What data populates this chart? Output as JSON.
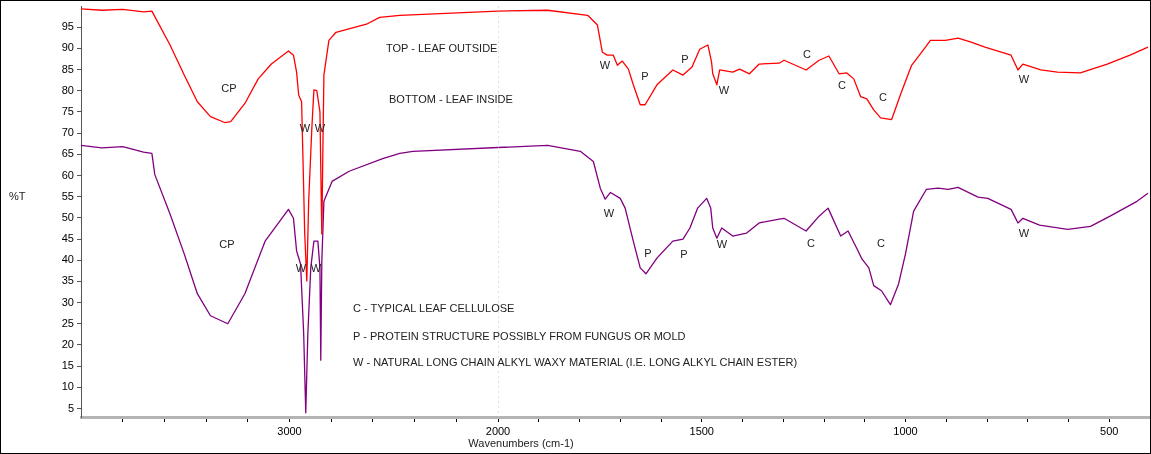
{
  "chart_data": [
    {
      "type": "line",
      "ylabel": "%T",
      "marker": "none",
      "xlim": [
        4000,
        2000
      ],
      "ylim": [
        3,
        100
      ],
      "xticks": [
        {
          "value": 3800,
          "label": null
        },
        {
          "value": 3600,
          "label": null
        },
        {
          "value": 3400,
          "label": null
        },
        {
          "value": 3200,
          "label": null
        },
        3000,
        {
          "value": 2800,
          "label": null
        },
        {
          "value": 2600,
          "label": null
        },
        {
          "value": 2400,
          "label": null
        },
        {
          "value": 2200,
          "label": null
        },
        2000
      ],
      "yticks": [
        5,
        10,
        15,
        20,
        25,
        30,
        35,
        40,
        45,
        50,
        55,
        60,
        65,
        70,
        75,
        80,
        85,
        90,
        95
      ],
      "series": [
        {
          "color": "#ff0000",
          "x": [
            4000,
            3900,
            3800,
            3700,
            3660,
            3573,
            3505,
            3442,
            3379,
            3311,
            3282,
            3214,
            3150,
            3087,
            3005,
            2981,
            2966,
            2956,
            2942,
            2937,
            2927,
            2917,
            2908,
            2893,
            2883,
            2869,
            2854,
            2850,
            2845,
            2840,
            2835,
            2811,
            2777,
            2631,
            2568,
            2471,
            2000
          ],
          "values": [
            99.3,
            99,
            99.2,
            98.6,
            98.8,
            90.8,
            83.7,
            77.4,
            73.9,
            72.5,
            72.7,
            77,
            82.8,
            86.3,
            89.4,
            88.4,
            84.4,
            79,
            77.4,
            67.3,
            46.2,
            35.1,
            53.9,
            71,
            80.2,
            80,
            75,
            61.7,
            46.2,
            65.7,
            83.7,
            91.9,
            93.8,
            95.7,
            97.3,
            97.8,
            98.8
          ]
        },
        {
          "color": "#800080",
          "x": [
            4000,
            3900,
            3800,
            3700,
            3660,
            3646,
            3573,
            3505,
            3442,
            3379,
            3296,
            3214,
            3117,
            3005,
            2981,
            2966,
            2947,
            2932,
            2922,
            2912,
            2898,
            2883,
            2864,
            2854,
            2850,
            2845,
            2835,
            2796,
            2714,
            2553,
            2471,
            2408,
            2000
          ],
          "values": [
            67.1,
            66.5,
            66.8,
            65.5,
            65.2,
            60.2,
            50.9,
            41.5,
            32.1,
            26.9,
            25,
            32.1,
            44.5,
            52,
            49.9,
            42.2,
            39.1,
            22.7,
            4,
            22.7,
            38.2,
            44.5,
            44.5,
            38.2,
            16.4,
            39.8,
            53.9,
            58.6,
            61,
            64,
            65.2,
            65.7,
            66.6
          ]
        }
      ],
      "annotations": [
        "TOP - LEAF OUTSIDE",
        "BOTTOM - LEAF INSIDE",
        "C - TYPICAL LEAF CELLULOSE",
        "P - PROTEIN STRUCTURE POSSIBLY FROM FUNGUS OR MOLD",
        "W - NATURAL LONG CHAIN ALKYL WAXY MATERIAL (I.E. LONG ALKYL CHAIN ESTER)",
        "CP",
        "W",
        "W",
        "CP",
        "W",
        "W"
      ]
    },
    {
      "type": "line",
      "xlabel": "Wavenumbers (cm-1)",
      "marker": "none",
      "tick_labels": "x",
      "xlim": [
        2000,
        400
      ],
      "ylim": [
        3,
        100
      ],
      "xticks": [
        {
          "value": 1900,
          "label": null
        },
        {
          "value": 1800,
          "label": null
        },
        {
          "value": 1700,
          "label": null
        },
        {
          "value": 1600,
          "label": null
        },
        1500,
        {
          "value": 1400,
          "label": null
        },
        {
          "value": 1300,
          "label": null
        },
        {
          "value": 1200,
          "label": null
        },
        {
          "value": 1100,
          "label": null
        },
        1000,
        {
          "value": 900,
          "label": null
        },
        {
          "value": 800,
          "label": null
        },
        {
          "value": 700,
          "label": null
        },
        {
          "value": 600,
          "label": null
        },
        500
      ],
      "ref_lines": [
        {
          "axis": "x",
          "value": 2000,
          "color": "#c0c0c0",
          "line_style": "dotted"
        }
      ],
      "series": [
        {
          "color": "#ff0000",
          "x": [
            2000,
            1878,
            1780,
            1756,
            1744,
            1732,
            1717,
            1707,
            1695,
            1680,
            1668,
            1651,
            1639,
            1610,
            1571,
            1546,
            1524,
            1505,
            1485,
            1476,
            1473,
            1463,
            1456,
            1424,
            1407,
            1383,
            1359,
            1310,
            1298,
            1244,
            1212,
            1188,
            1163,
            1144,
            1127,
            1110,
            1095,
            1078,
            1061,
            1034,
            1010,
            985,
            951,
            939,
            902,
            871,
            839,
            805,
            741,
            724,
            712,
            668,
            627,
            571,
            505,
            449,
            405
          ],
          "values": [
            98.8,
            99,
            97.8,
            95.5,
            89.1,
            88.4,
            88.4,
            86,
            87,
            85.1,
            81.4,
            76.7,
            76.7,
            81.4,
            84.9,
            83.7,
            85.6,
            89.8,
            90.8,
            86.8,
            84,
            81.4,
            84.9,
            84.4,
            85.1,
            84,
            86.3,
            86.5,
            87.2,
            84.9,
            87.2,
            88.2,
            84,
            84.2,
            82.8,
            78.6,
            78.1,
            75.5,
            73.6,
            73.2,
            79.7,
            86,
            90.3,
            91.9,
            91.9,
            92.4,
            91.5,
            90.3,
            88.4,
            84.9,
            86.3,
            84.9,
            84.4,
            84.2,
            86.3,
            88.4,
            90.3
          ]
        },
        {
          "color": "#800080",
          "x": [
            2000,
            1878,
            1798,
            1766,
            1749,
            1737,
            1724,
            1700,
            1688,
            1668,
            1651,
            1637,
            1610,
            1571,
            1546,
            1529,
            1510,
            1488,
            1478,
            1473,
            1463,
            1451,
            1424,
            1390,
            1359,
            1310,
            1298,
            1244,
            1212,
            1190,
            1159,
            1141,
            1120,
            1107,
            1090,
            1078,
            1059,
            1037,
            1017,
            1000,
            980,
            949,
            920,
            895,
            871,
            822,
            798,
            741,
            724,
            712,
            671,
            602,
            546,
            498,
            432,
            405
          ],
          "values": [
            66.6,
            67.1,
            65.7,
            63.3,
            57,
            54.4,
            56,
            54.6,
            52.3,
            44.5,
            38.2,
            36.8,
            40.5,
            44.5,
            45,
            47.6,
            52.3,
            54.6,
            52.3,
            47.6,
            45.2,
            47.6,
            45.7,
            46.4,
            48.8,
            49.7,
            49.9,
            46.9,
            50.4,
            52.3,
            45.7,
            46.9,
            42.9,
            40.3,
            38.2,
            34,
            32.8,
            29.5,
            34.4,
            41.5,
            51.6,
            56.7,
            57,
            56.7,
            57.2,
            54.9,
            54.6,
            52,
            48.8,
            49.9,
            48.3,
            47.3,
            48,
            50.4,
            53.9,
            55.8
          ]
        }
      ],
      "annotations": [
        "W",
        "P",
        "P",
        "W",
        "C",
        "C",
        "C",
        "W",
        "W",
        "P",
        "P",
        "W",
        "C",
        "C",
        "W"
      ]
    }
  ]
}
